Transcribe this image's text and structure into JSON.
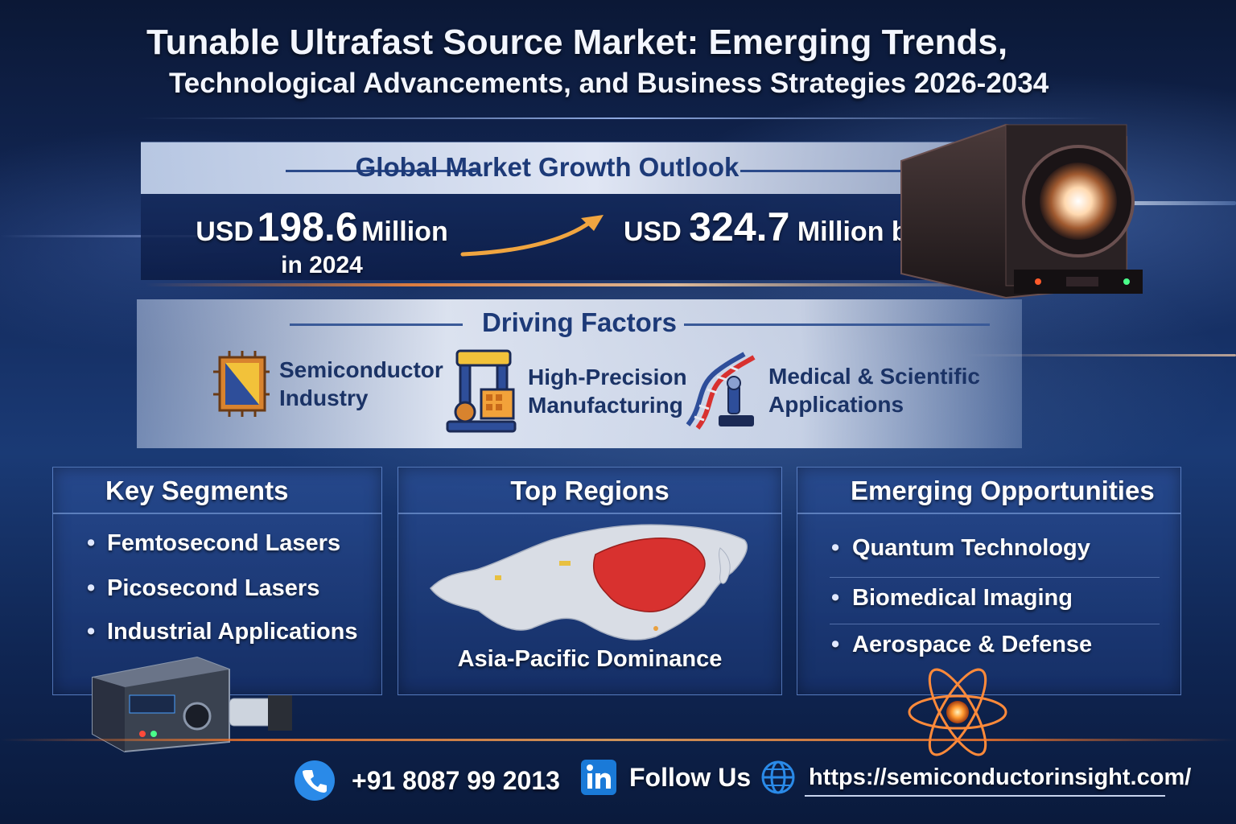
{
  "header": {
    "title_line1": "Tunable Ultrafast Source Market: Emerging Trends,",
    "title_line2": "Technological Advancements, and Business Strategies 2026-2034"
  },
  "growth": {
    "title": "Global Market Growth Outlook",
    "start_prefix": "USD",
    "start_value": "198.6",
    "start_unit": "Million",
    "start_year_text": "in 2024",
    "end_prefix": "USD",
    "end_value": "324.7",
    "end_suffix": "Million by 2032"
  },
  "driving_factors": {
    "title": "Driving Factors",
    "items": [
      {
        "line1": "Semiconductor",
        "line2": "Industry",
        "icon": "chip-icon"
      },
      {
        "line1": "High-Precision",
        "line2": "Manufacturing",
        "icon": "robotic-arm-icon"
      },
      {
        "line1": "Medical & Scientific",
        "line2": "Applications",
        "icon": "dna-microscope-icon"
      }
    ]
  },
  "key_segments": {
    "title": "Key Segments",
    "items": [
      "Femtosecond Lasers",
      "Picosecond Lasers",
      "Industrial Applications"
    ]
  },
  "top_regions": {
    "title": "Top Regions",
    "label": "Asia-Pacific Dominance"
  },
  "emerging": {
    "title": "Emerging Opportunities",
    "items": [
      "Quantum Technology",
      "Biomedical Imaging",
      "Aerospace & Defense"
    ]
  },
  "footer": {
    "phone": "+91 8087 99 2013",
    "follow": "Follow Us",
    "url": "https://semiconductorinsight.com/"
  },
  "colors": {
    "accent_orange": "#ff7a2a",
    "header_navy": "#1d3a78",
    "map_highlight": "#d8312f"
  }
}
